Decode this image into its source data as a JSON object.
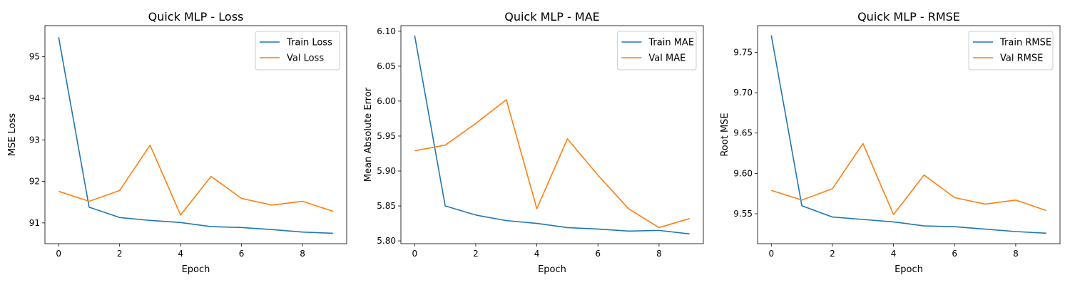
{
  "chart_data": [
    {
      "type": "line",
      "title": "Quick MLP - Loss",
      "xlabel": "Epoch",
      "ylabel": "MSE Loss",
      "xlim": [
        -0.45,
        9.45
      ],
      "ylim": [
        90.5,
        95.75
      ],
      "xticks": [
        0,
        2,
        4,
        6,
        8
      ],
      "yticks": [
        91,
        92,
        93,
        94,
        95
      ],
      "ytick_labels": [
        "91",
        "92",
        "93",
        "94",
        "95"
      ],
      "grid": false,
      "legend_position": "upper right",
      "x": [
        0,
        1,
        2,
        3,
        4,
        5,
        6,
        7,
        8,
        9
      ],
      "series": [
        {
          "name": "Train Loss",
          "color": "#1f77b4",
          "values": [
            95.47,
            91.38,
            91.13,
            91.06,
            91.01,
            90.91,
            90.89,
            90.84,
            90.78,
            90.75
          ]
        },
        {
          "name": "Val Loss",
          "color": "#ff7f0e",
          "values": [
            91.76,
            91.52,
            91.78,
            92.87,
            91.19,
            92.12,
            91.59,
            91.43,
            91.52,
            91.28
          ]
        }
      ]
    },
    {
      "type": "line",
      "title": "Quick MLP - MAE",
      "xlabel": "Epoch",
      "ylabel": "Mean Absolute Error",
      "xlim": [
        -0.45,
        9.45
      ],
      "ylim": [
        5.796,
        6.108
      ],
      "xticks": [
        0,
        2,
        4,
        6,
        8
      ],
      "yticks": [
        5.8,
        5.85,
        5.9,
        5.95,
        6.0,
        6.05,
        6.1
      ],
      "ytick_labels": [
        "5.80",
        "5.85",
        "5.90",
        "5.95",
        "6.00",
        "6.05",
        "6.10"
      ],
      "grid": false,
      "legend_position": "upper right",
      "x": [
        0,
        1,
        2,
        3,
        4,
        5,
        6,
        7,
        8,
        9
      ],
      "series": [
        {
          "name": "Train MAE",
          "color": "#1f77b4",
          "values": [
            6.094,
            5.85,
            5.837,
            5.829,
            5.825,
            5.819,
            5.817,
            5.814,
            5.815,
            5.81
          ]
        },
        {
          "name": "Val MAE",
          "color": "#ff7f0e",
          "values": [
            5.929,
            5.937,
            5.968,
            6.002,
            5.846,
            5.946,
            5.894,
            5.846,
            5.819,
            5.832
          ]
        }
      ]
    },
    {
      "type": "line",
      "title": "Quick MLP - RMSE",
      "xlabel": "Epoch",
      "ylabel": "Root MSE",
      "xlim": [
        -0.45,
        9.45
      ],
      "ylim": [
        9.513,
        9.783
      ],
      "xticks": [
        0,
        2,
        4,
        6,
        8
      ],
      "yticks": [
        9.55,
        9.6,
        9.65,
        9.7,
        9.75
      ],
      "ytick_labels": [
        "9.55",
        "9.60",
        "9.65",
        "9.70",
        "9.75"
      ],
      "grid": false,
      "legend_position": "upper right",
      "x": [
        0,
        1,
        2,
        3,
        4,
        5,
        6,
        7,
        8,
        9
      ],
      "series": [
        {
          "name": "Train RMSE",
          "color": "#1f77b4",
          "values": [
            9.771,
            9.56,
            9.546,
            9.543,
            9.54,
            9.535,
            9.534,
            9.531,
            9.528,
            9.526
          ]
        },
        {
          "name": "Val RMSE",
          "color": "#ff7f0e",
          "values": [
            9.579,
            9.567,
            9.581,
            9.637,
            9.549,
            9.598,
            9.57,
            9.562,
            9.567,
            9.554
          ]
        }
      ]
    }
  ]
}
